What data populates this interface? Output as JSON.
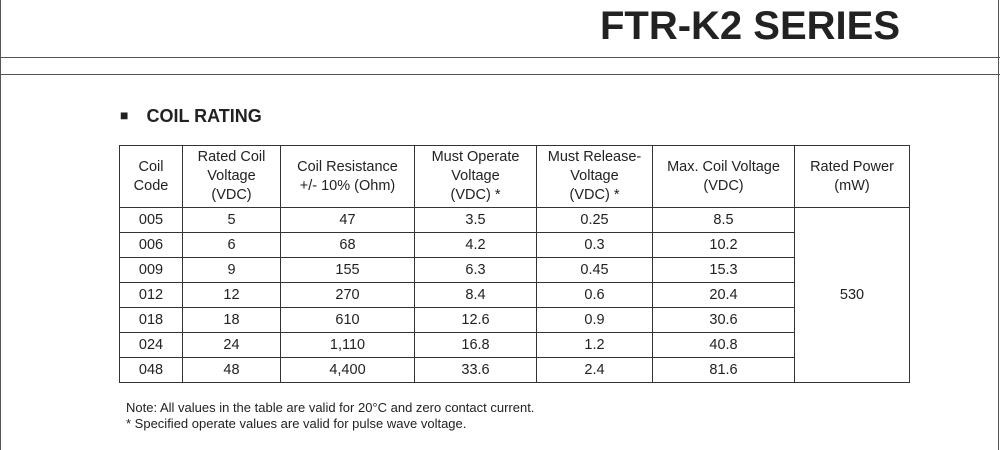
{
  "header": {
    "title": "FTR-K2 SERIES"
  },
  "section": {
    "bullet": "■",
    "title": "COIL RATING"
  },
  "table": {
    "columns": [
      [
        "Coil",
        "Code"
      ],
      [
        "Rated Coil",
        "Voltage",
        "(VDC)"
      ],
      [
        "Coil Resistance",
        "+/- 10% (Ohm)"
      ],
      [
        "Must Operate",
        "Voltage",
        "(VDC) *"
      ],
      [
        "Must Release-",
        "Voltage",
        "(VDC) *"
      ],
      [
        "Max. Coil Voltage",
        "(VDC)"
      ],
      [
        "Rated Power",
        "(mW)"
      ]
    ],
    "rows": [
      [
        "005",
        "5",
        "47",
        "3.5",
        "0.25",
        "8.5"
      ],
      [
        "006",
        "6",
        "68",
        "4.2",
        "0.3",
        "10.2"
      ],
      [
        "009",
        "9",
        "155",
        "6.3",
        "0.45",
        "15.3"
      ],
      [
        "012",
        "12",
        "270",
        "8.4",
        "0.6",
        "20.4"
      ],
      [
        "018",
        "18",
        "610",
        "12.6",
        "0.9",
        "30.6"
      ],
      [
        "024",
        "24",
        "1,110",
        "16.8",
        "1.2",
        "40.8"
      ],
      [
        "048",
        "48",
        "4,400",
        "33.6",
        "2.4",
        "81.6"
      ]
    ],
    "rated_power": "530"
  },
  "notes": [
    "Note: All values in the table are valid for 20°C and zero contact current.",
    "* Specified operate values are valid for pulse wave voltage."
  ]
}
